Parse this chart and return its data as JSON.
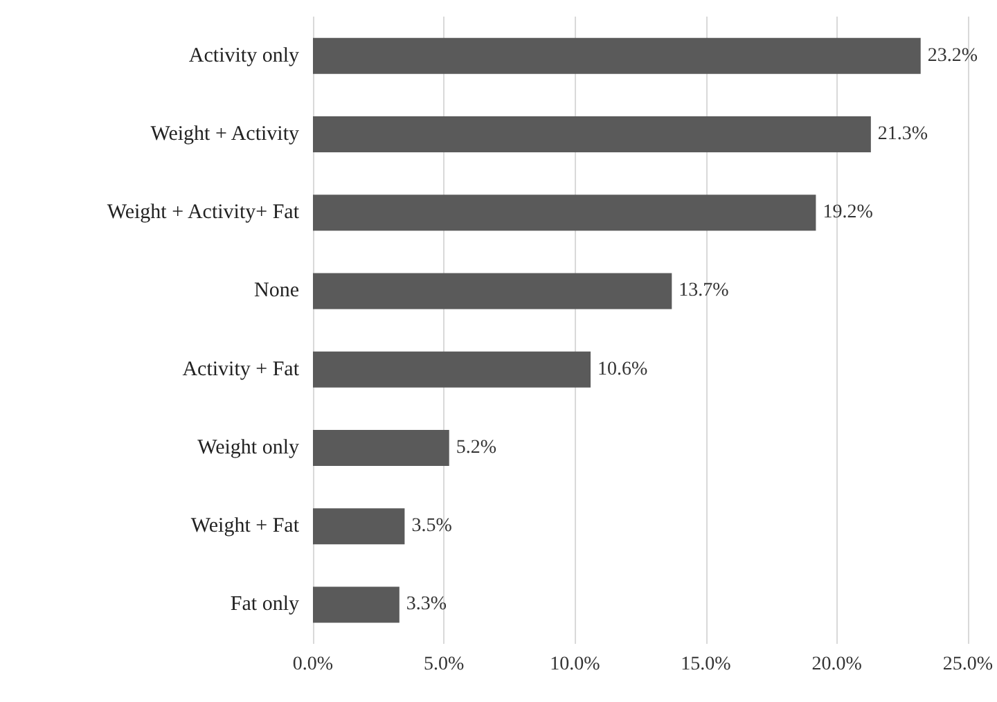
{
  "chart_data": {
    "type": "bar",
    "orientation": "horizontal",
    "categories": [
      "Activity only",
      "Weight + Activity",
      "Weight + Activity+ Fat",
      "None",
      "Activity + Fat",
      "Weight only",
      "Weight + Fat",
      "Fat only"
    ],
    "values": [
      23.2,
      21.3,
      19.2,
      13.7,
      10.6,
      5.2,
      3.5,
      3.3
    ],
    "value_labels": [
      "23.2%",
      "21.3%",
      "19.2%",
      "13.7%",
      "10.6%",
      "5.2%",
      "3.5%",
      "3.3%"
    ],
    "color": "#5a5a5a",
    "xlim": [
      0,
      25
    ],
    "xticks": [
      {
        "value": 0,
        "label": "0.0%"
      },
      {
        "value": 5,
        "label": "5.0%"
      },
      {
        "value": 10,
        "label": "10.0%"
      },
      {
        "value": 15,
        "label": "15.0%"
      },
      {
        "value": 20,
        "label": "20.0%"
      },
      {
        "value": 25,
        "label": "25.0%"
      }
    ],
    "grid": "x"
  }
}
